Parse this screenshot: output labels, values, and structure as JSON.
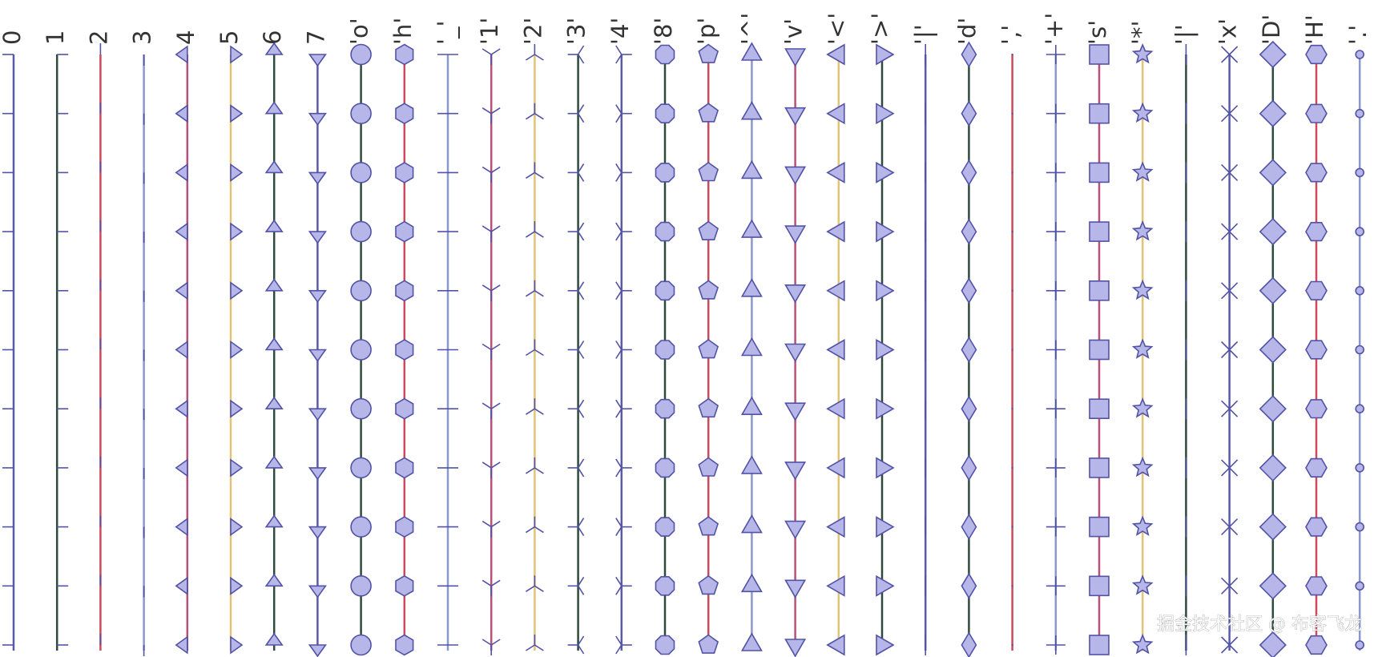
{
  "figure": {
    "columns": [
      {
        "label": "0",
        "marker": "tickleft",
        "color": "#5a5aa8"
      },
      {
        "label": "1",
        "marker": "tickright",
        "color": "#2e4a3c"
      },
      {
        "label": "2",
        "marker": "tickup",
        "color": "#cc4a5c"
      },
      {
        "label": "3",
        "marker": "tickdown",
        "color": "#8a98cc"
      },
      {
        "label": "4",
        "marker": "caretleft",
        "color": "#b8507a"
      },
      {
        "label": "5",
        "marker": "caretright",
        "color": "#e2c477"
      },
      {
        "label": "6",
        "marker": "caretup",
        "color": "#2e4a3c"
      },
      {
        "label": "7",
        "marker": "caretdown",
        "color": "#5a5aa8"
      },
      {
        "label": "'o'",
        "marker": "circle",
        "color": "#2e4a3c"
      },
      {
        "label": "'h'",
        "marker": "hexagon1",
        "color": "#cc4a5c"
      },
      {
        "label": "'_'",
        "marker": "hline",
        "color": "#8a98cc"
      },
      {
        "label": "'1'",
        "marker": "tri_down",
        "color": "#b8507a"
      },
      {
        "label": "'2'",
        "marker": "tri_up",
        "color": "#e2c477"
      },
      {
        "label": "'3'",
        "marker": "tri_left",
        "color": "#2e4a3c"
      },
      {
        "label": "'4'",
        "marker": "tri_right",
        "color": "#5a5aa8"
      },
      {
        "label": "'8'",
        "marker": "octagon",
        "color": "#2e4a3c"
      },
      {
        "label": "'p'",
        "marker": "pentagon",
        "color": "#cc4a5c"
      },
      {
        "label": "'^'",
        "marker": "triangle_up",
        "color": "#8a98cc"
      },
      {
        "label": "'v'",
        "marker": "triangle_down",
        "color": "#b8507a"
      },
      {
        "label": "'<'",
        "marker": "triangle_left",
        "color": "#e2c477"
      },
      {
        "label": "'>'",
        "marker": "triangle_right",
        "color": "#2e4a3c"
      },
      {
        "label": "'|'",
        "marker": "vline",
        "color": "#5a5aa8"
      },
      {
        "label": "'d'",
        "marker": "thin_diamond",
        "color": "#2e4a3c"
      },
      {
        "label": "','",
        "marker": "pixel",
        "color": "#cc4a5c"
      },
      {
        "label": "'+'",
        "marker": "plus",
        "color": "#8a98cc"
      },
      {
        "label": "'s'",
        "marker": "square",
        "color": "#b8507a"
      },
      {
        "label": "'*'",
        "marker": "star",
        "color": "#e2c477"
      },
      {
        "label": "'|'",
        "marker": "vline",
        "color": "#2e4a3c"
      },
      {
        "label": "'x'",
        "marker": "x",
        "color": "#5a5aa8"
      },
      {
        "label": "'D'",
        "marker": "diamond",
        "color": "#2e4a3c"
      },
      {
        "label": "'H'",
        "marker": "hexagon2",
        "color": "#cc4a5c"
      },
      {
        "label": "'.'",
        "marker": "point",
        "color": "#8a98cc"
      }
    ],
    "marker_fill": "#b6b6e8",
    "marker_edge": "#5252a6",
    "watermark": "掘金技术社区 @ 布客飞龙"
  }
}
